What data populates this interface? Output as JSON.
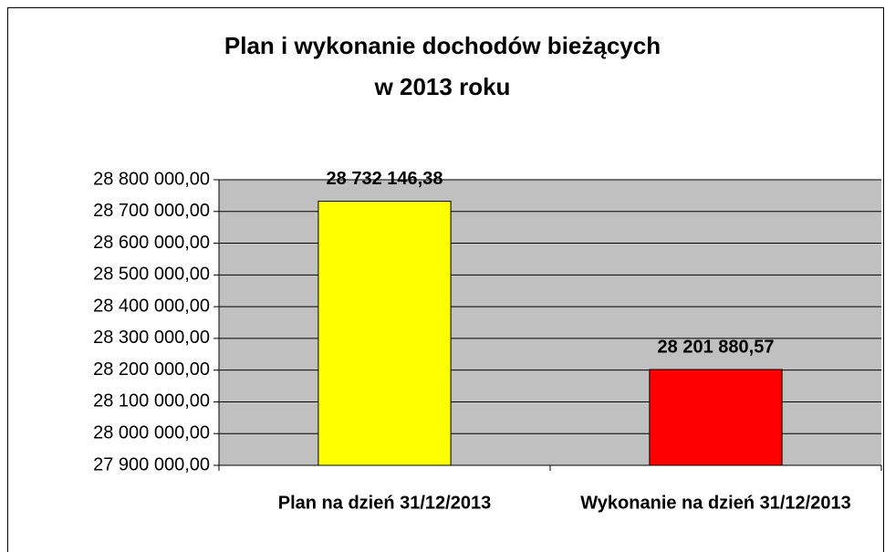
{
  "chart_data": {
    "type": "bar",
    "title": [
      "Plan i wykonanie dochodów bieżących",
      "w 2013 roku"
    ],
    "categories": [
      "Plan na dzień 31/12/2013",
      "Wykonanie na dzień 31/12/2013"
    ],
    "values": [
      28732146.38,
      28201880.57
    ],
    "value_labels": [
      "28 732 146,38",
      "28 201 880,57"
    ],
    "colors": [
      "#ffff00",
      "#ff0000"
    ],
    "ylim": [
      27900000,
      28800000
    ],
    "yticks": [
      {
        "value": 27900000,
        "label": "27 900 000,00"
      },
      {
        "value": 28000000,
        "label": "28 000 000,00"
      },
      {
        "value": 28100000,
        "label": "28 100 000,00"
      },
      {
        "value": 28200000,
        "label": "28 200 000,00"
      },
      {
        "value": 28300000,
        "label": "28 300 000,00"
      },
      {
        "value": 28400000,
        "label": "28 400 000,00"
      },
      {
        "value": 28500000,
        "label": "28 500 000,00"
      },
      {
        "value": 28600000,
        "label": "28 600 000,00"
      },
      {
        "value": 28700000,
        "label": "28 700 000,00"
      },
      {
        "value": 28800000,
        "label": "28 800 000,00"
      }
    ],
    "grid": true
  }
}
